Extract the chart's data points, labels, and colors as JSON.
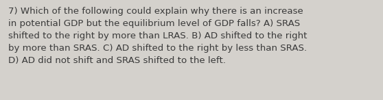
{
  "text": "7) Which of the following could explain why there is an increase\nin potential GDP but the equilibrium level of GDP falls? A) SRAS\nshifted to the right by more than LRAS. B) AD shifted to the right\nby more than SRAS. C) AD shifted to the right by less than SRAS.\nD) AD did not shift and SRAS shifted to the left.",
  "background_color": "#d4d1cc",
  "text_color": "#3a3a3a",
  "font_size": 9.6,
  "fig_width": 5.58,
  "fig_height": 1.46,
  "dpi": 100
}
